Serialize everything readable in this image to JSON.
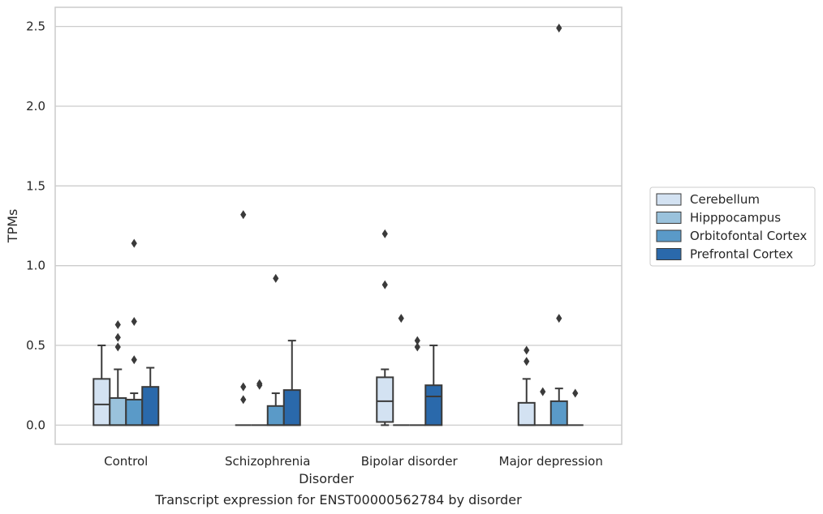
{
  "caption": "Transcript expression for ENST00000562784 by disorder",
  "chart_data": {
    "type": "box",
    "xlabel": "Disorder",
    "ylabel": "TPMs",
    "ylim": [
      -0.12,
      2.62
    ],
    "yticks": [
      "0.0",
      "0.5",
      "1.0",
      "1.5",
      "2.0",
      "2.5"
    ],
    "ytick_values": [
      0.0,
      0.5,
      1.0,
      1.5,
      2.0,
      2.5
    ],
    "grid": "horizontal",
    "legend_position": "right",
    "categories": [
      "Control",
      "Schizophrenia",
      "Bipolar disorder",
      "Major depression"
    ],
    "series": [
      {
        "name": "Cerebellum",
        "color": "#d3e2f2",
        "boxes": [
          {
            "whislo": 0.0,
            "q1": 0.0,
            "med": 0.13,
            "q3": 0.29,
            "whishi": 0.5,
            "fliers": []
          },
          {
            "whislo": 0.0,
            "q1": 0.0,
            "med": 0.0,
            "q3": 0.0,
            "whishi": 0.0,
            "fliers": [
              0.16,
              0.24,
              1.32
            ]
          },
          {
            "whislo": 0.0,
            "q1": 0.02,
            "med": 0.15,
            "q3": 0.3,
            "whishi": 0.35,
            "fliers": [
              0.88,
              1.2
            ]
          },
          {
            "whislo": 0.0,
            "q1": 0.0,
            "med": 0.0,
            "q3": 0.14,
            "whishi": 0.29,
            "fliers": [
              0.4,
              0.47
            ]
          }
        ]
      },
      {
        "name": "Hipppocampus",
        "color": "#9ac2dc",
        "boxes": [
          {
            "whislo": 0.0,
            "q1": 0.0,
            "med": 0.0,
            "q3": 0.17,
            "whishi": 0.35,
            "fliers": [
              0.49,
              0.55,
              0.63
            ]
          },
          {
            "whislo": 0.0,
            "q1": 0.0,
            "med": 0.0,
            "q3": 0.0,
            "whishi": 0.0,
            "fliers": [
              0.25,
              0.26
            ]
          },
          {
            "whislo": 0.0,
            "q1": 0.0,
            "med": 0.0,
            "q3": 0.0,
            "whishi": 0.0,
            "fliers": [
              0.67
            ]
          },
          {
            "whislo": 0.0,
            "q1": 0.0,
            "med": 0.0,
            "q3": 0.0,
            "whishi": 0.0,
            "fliers": [
              0.21
            ]
          }
        ]
      },
      {
        "name": "Orbitofontal Cortex",
        "color": "#5a9ac8",
        "boxes": [
          {
            "whislo": 0.0,
            "q1": 0.0,
            "med": 0.0,
            "q3": 0.16,
            "whishi": 0.2,
            "fliers": [
              0.41,
              0.65,
              1.14
            ]
          },
          {
            "whislo": 0.0,
            "q1": 0.0,
            "med": 0.0,
            "q3": 0.12,
            "whishi": 0.2,
            "fliers": [
              0.92
            ]
          },
          {
            "whislo": 0.0,
            "q1": 0.0,
            "med": 0.0,
            "q3": 0.0,
            "whishi": 0.0,
            "fliers": [
              0.49,
              0.53
            ]
          },
          {
            "whislo": 0.0,
            "q1": 0.0,
            "med": 0.0,
            "q3": 0.15,
            "whishi": 0.23,
            "fliers": [
              0.67,
              2.49
            ]
          }
        ]
      },
      {
        "name": "Prefrontal Cortex",
        "color": "#2a69ab",
        "boxes": [
          {
            "whislo": 0.0,
            "q1": 0.0,
            "med": 0.0,
            "q3": 0.24,
            "whishi": 0.36,
            "fliers": []
          },
          {
            "whislo": 0.0,
            "q1": 0.0,
            "med": 0.0,
            "q3": 0.22,
            "whishi": 0.53,
            "fliers": []
          },
          {
            "whislo": 0.0,
            "q1": 0.0,
            "med": 0.18,
            "q3": 0.25,
            "whishi": 0.5,
            "fliers": []
          },
          {
            "whislo": 0.0,
            "q1": 0.0,
            "med": 0.0,
            "q3": 0.0,
            "whishi": 0.0,
            "fliers": [
              0.2
            ]
          }
        ]
      }
    ]
  }
}
